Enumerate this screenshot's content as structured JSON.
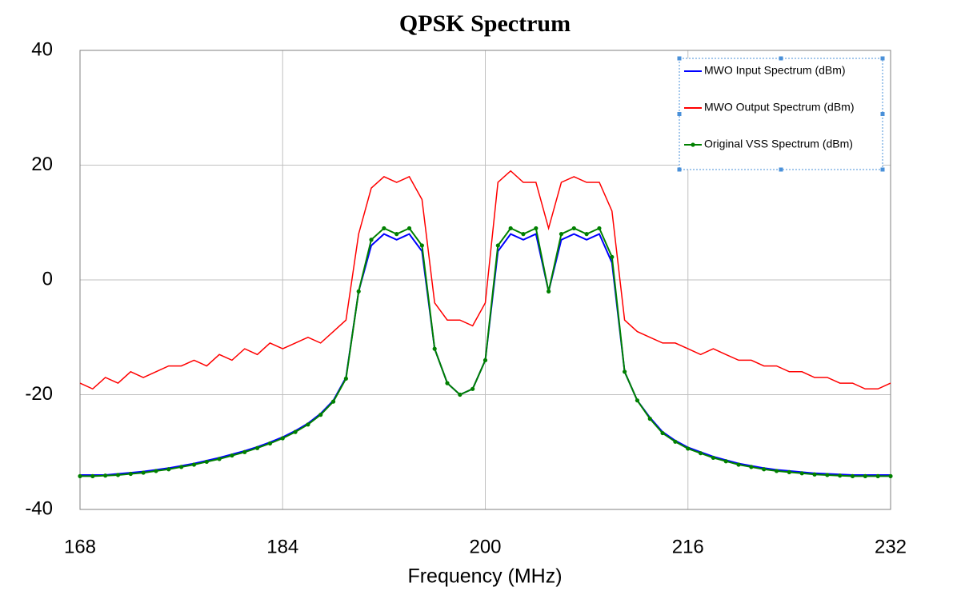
{
  "chart_data": {
    "type": "line",
    "title": "QPSK Spectrum",
    "xlabel": "Frequency (MHz)",
    "x": [
      168,
      169,
      170,
      171,
      172,
      173,
      174,
      175,
      176,
      177,
      178,
      179,
      180,
      181,
      182,
      183,
      184,
      185,
      186,
      187,
      188,
      189,
      190,
      191,
      192,
      193,
      194,
      195,
      196,
      197,
      198,
      199,
      200,
      201,
      202,
      203,
      204,
      205,
      206,
      207,
      208,
      209,
      210,
      211,
      212,
      213,
      214,
      215,
      216,
      217,
      218,
      219,
      220,
      221,
      222,
      223,
      224,
      225,
      226,
      227,
      228,
      229,
      230,
      231,
      232
    ],
    "series": [
      {
        "name": "MWO Input Spectrum (dBm)",
        "color": "#0000ff",
        "marker": false,
        "values": [
          -34,
          -34,
          -34,
          -33.8,
          -33.6,
          -33.4,
          -33.1,
          -32.8,
          -32.4,
          -32,
          -31.5,
          -31,
          -30.4,
          -29.8,
          -29.1,
          -28.3,
          -27.4,
          -26.3,
          -25,
          -23.3,
          -21,
          -17,
          -2,
          6,
          8,
          7,
          8,
          5,
          -12,
          -18,
          -20,
          -19,
          -14,
          5,
          8,
          7,
          8,
          -2,
          7,
          8,
          7,
          8,
          3,
          -16,
          -21,
          -24,
          -26.5,
          -28,
          -29.2,
          -30,
          -30.8,
          -31.4,
          -32,
          -32.4,
          -32.8,
          -33.1,
          -33.3,
          -33.5,
          -33.7,
          -33.8,
          -33.9,
          -34,
          -34,
          -34,
          -34
        ]
      },
      {
        "name": "MWO Output Spectrum (dBm)",
        "color": "#ff0000",
        "marker": false,
        "values": [
          -18,
          -19,
          -17,
          -18,
          -16,
          -17,
          -16,
          -15,
          -15,
          -14,
          -15,
          -13,
          -14,
          -12,
          -13,
          -11,
          -12,
          -11,
          -10,
          -11,
          -9,
          -7,
          8,
          16,
          18,
          17,
          18,
          14,
          -4,
          -7,
          -7,
          -8,
          -4,
          17,
          19,
          17,
          17,
          9,
          17,
          18,
          17,
          17,
          12,
          -7,
          -9,
          -10,
          -11,
          -11,
          -12,
          -13,
          -12,
          -13,
          -14,
          -14,
          -15,
          -15,
          -16,
          -16,
          -17,
          -17,
          -18,
          -18,
          -19,
          -19,
          -18
        ]
      },
      {
        "name": "Original VSS Spectrum (dBm)",
        "color": "#008000",
        "marker": true,
        "values": [
          -34.2,
          -34.2,
          -34.1,
          -34,
          -33.8,
          -33.6,
          -33.3,
          -33,
          -32.6,
          -32.2,
          -31.7,
          -31.2,
          -30.6,
          -30,
          -29.3,
          -28.5,
          -27.6,
          -26.5,
          -25.2,
          -23.5,
          -21.2,
          -17.2,
          -2,
          7,
          9,
          8,
          9,
          6,
          -12,
          -18,
          -20,
          -19,
          -14,
          6,
          9,
          8,
          9,
          -2,
          8,
          9,
          8,
          9,
          4,
          -16,
          -21,
          -24.2,
          -26.7,
          -28.2,
          -29.4,
          -30.2,
          -31,
          -31.6,
          -32.2,
          -32.6,
          -33,
          -33.3,
          -33.5,
          -33.7,
          -33.9,
          -34,
          -34.1,
          -34.2,
          -34.2,
          -34.2,
          -34.2
        ]
      }
    ],
    "xlim": [
      168,
      232
    ],
    "ylim": [
      -40,
      40
    ],
    "xticks": [
      168,
      184,
      200,
      216,
      232
    ],
    "yticks": [
      -40,
      -20,
      0,
      20,
      40
    ],
    "grid": true,
    "legend": "upper right"
  }
}
